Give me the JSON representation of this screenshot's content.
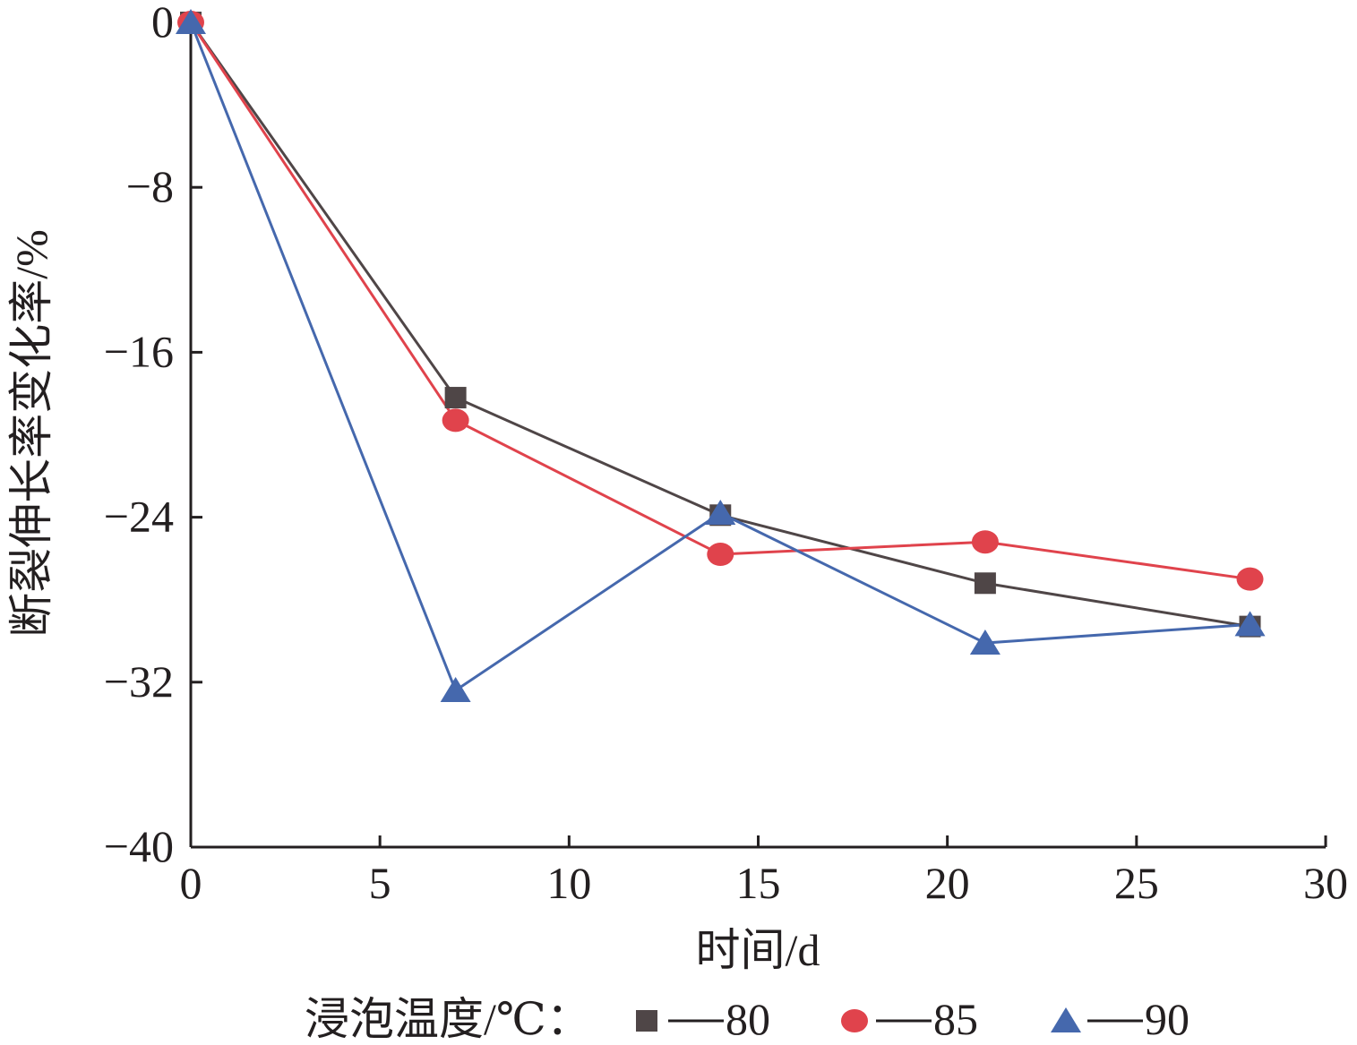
{
  "chart_data": {
    "type": "line",
    "xlabel": "时间/d",
    "ylabel": "断裂伸长率变化率/%",
    "xlim": [
      0,
      30
    ],
    "ylim": [
      -40,
      0
    ],
    "x_ticks": [
      "0",
      "5",
      "10",
      "15",
      "20",
      "25",
      "30"
    ],
    "y_ticks": [
      "0",
      "−8",
      "−16",
      "−24",
      "−32",
      "−40"
    ],
    "grid": false,
    "legend": {
      "title": "浸泡温度/℃：",
      "placement": "bottom"
    },
    "x": [
      0,
      7,
      14,
      21,
      28
    ],
    "series": [
      {
        "name": "80",
        "marker": "square",
        "color": "#4f4647",
        "values": [
          0,
          -18.2,
          -23.9,
          -27.2,
          -29.3
        ]
      },
      {
        "name": "85",
        "marker": "circle",
        "color": "#e0434c",
        "values": [
          0,
          -19.3,
          -25.8,
          -25.2,
          -27.0
        ]
      },
      {
        "name": "90",
        "marker": "triangle",
        "color": "#4568ad",
        "values": [
          0,
          -32.4,
          -23.8,
          -30.1,
          -29.2
        ]
      }
    ]
  }
}
